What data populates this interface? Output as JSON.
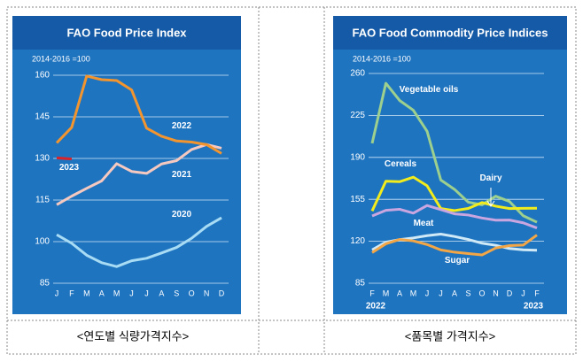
{
  "chart_data": [
    {
      "type": "line",
      "title": "FAO Food Price Index",
      "subtitle": "2014-2016 =100",
      "categories": [
        "J",
        "F",
        "M",
        "A",
        "M",
        "J",
        "J",
        "A",
        "S",
        "O",
        "N",
        "D"
      ],
      "ylim": [
        85,
        160
      ],
      "yticks": [
        85,
        100,
        115,
        130,
        145,
        160
      ],
      "grid": true,
      "series": [
        {
          "name": "2020",
          "color": "#a8dcf4",
          "values": [
            102.5,
            99.4,
            95.1,
            92.4,
            91.0,
            93.1,
            94.0,
            95.9,
            97.9,
            101.2,
            105.5,
            108.6
          ]
        },
        {
          "name": "2021",
          "color": "#f6c9c0",
          "values": [
            113.3,
            116.4,
            119.2,
            121.9,
            128.1,
            125.3,
            124.6,
            128.0,
            129.2,
            133.2,
            135.0,
            133.7
          ]
        },
        {
          "name": "2022",
          "color": "#f3952e",
          "values": [
            135.6,
            141.2,
            159.7,
            158.4,
            158.1,
            154.7,
            140.9,
            138.0,
            136.3,
            135.9,
            135.0,
            131.8
          ]
        },
        {
          "name": "2023",
          "color": "#d9232a",
          "values": [
            130.2,
            129.8,
            null,
            null,
            null,
            null,
            null,
            null,
            null,
            null,
            null,
            null
          ]
        }
      ]
    },
    {
      "type": "line",
      "title": "FAO Food Commodity Price Indices",
      "subtitle": "2014-2016 =100",
      "categories": [
        "F",
        "M",
        "A",
        "M",
        "J",
        "J",
        "A",
        "S",
        "O",
        "N",
        "D",
        "J",
        "F"
      ],
      "year_labels": [
        "2022",
        "2023"
      ],
      "ylim": [
        85,
        260
      ],
      "yticks": [
        85,
        120,
        155,
        190,
        225,
        260
      ],
      "grid": true,
      "series": [
        {
          "name": "Vegetable oils",
          "color": "#9dd08e",
          "values": [
            201.7,
            251.8,
            237.5,
            229.3,
            211.8,
            171.1,
            163.3,
            152.6,
            150.4,
            157.6,
            153.2,
            141.3,
            135.9
          ]
        },
        {
          "name": "Cereals",
          "color": "#f2ec1c",
          "values": [
            145.3,
            170.1,
            169.7,
            173.5,
            166.3,
            147.3,
            145.6,
            147.4,
            152.3,
            149.3,
            147.3,
            147.5,
            147.6
          ]
        },
        {
          "name": "Dairy",
          "color": "#c9a6e0",
          "values": [
            141.1,
            145.8,
            146.7,
            143.5,
            149.8,
            146.4,
            142.9,
            141.9,
            139.4,
            137.6,
            137.7,
            135.4,
            131.1
          ]
        },
        {
          "name": "Meat",
          "color": "#cfe9f7",
          "values": [
            112.8,
            119.3,
            121.4,
            122.8,
            124.7,
            126.0,
            124.0,
            121.5,
            118.4,
            116.6,
            114.0,
            112.9,
            112.5
          ]
        },
        {
          "name": "Sugar",
          "color": "#f3a645",
          "values": [
            110.6,
            117.9,
            121.5,
            120.3,
            117.3,
            112.8,
            110.9,
            109.7,
            108.6,
            114.4,
            116.4,
            116.8,
            125.2
          ]
        }
      ]
    }
  ],
  "captions": [
    "<연도별 식량가격지수>",
    "<품목별 가격지수>"
  ]
}
